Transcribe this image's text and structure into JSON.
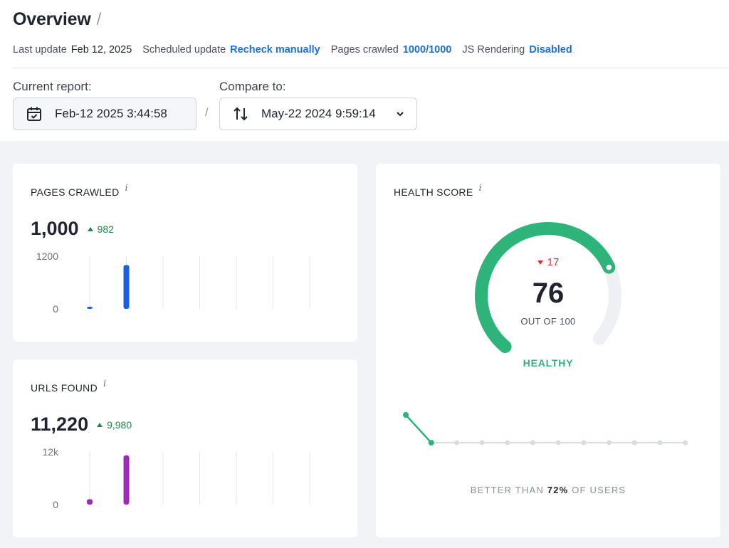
{
  "header": {
    "title": "Overview",
    "title_sep": "/",
    "meta": {
      "last_update_label": "Last update",
      "last_update_value": "Feb 12, 2025",
      "scheduled_label": "Scheduled update",
      "scheduled_link": "Recheck manually",
      "pages_label": "Pages crawled",
      "pages_value": "1000/1000",
      "js_label": "JS Rendering",
      "js_value": "Disabled"
    },
    "current_report": {
      "label": "Current report:",
      "value": "Feb-12 2025 3:44:58",
      "icon": "calendar-check-icon"
    },
    "separator": "/",
    "compare": {
      "label": "Compare to:",
      "value": "May-22 2024 9:59:14",
      "icon": "swap-vertical-icon"
    }
  },
  "pages_crawled": {
    "title": "PAGES CRAWLED",
    "info": "i",
    "value": "1,000",
    "delta": "982",
    "color": "#1a5fe0",
    "chart_data": {
      "type": "bar",
      "ytick_labels": [
        "1200",
        "0"
      ],
      "ylim": [
        0,
        1200
      ],
      "values": [
        18,
        1000
      ],
      "slots": 7
    }
  },
  "urls_found": {
    "title": "URLS FOUND",
    "info": "i",
    "value": "11,220",
    "delta": "9,980",
    "color": "#9b2bb8",
    "chart_data": {
      "type": "bar",
      "ytick_labels": [
        "12k",
        "0"
      ],
      "ylim": [
        0,
        12000
      ],
      "values": [
        1240,
        11220
      ],
      "slots": 7
    }
  },
  "health": {
    "title": "HEALTH SCORE",
    "info": "i",
    "delta": "17",
    "score": "76",
    "score_value": 76,
    "out_of": "OUT OF 100",
    "status": "HEALTHY",
    "gauge_color": "#2eb37a",
    "track_color": "#eef0f4",
    "better_prefix": "BETTER THAN",
    "better_value": "72%",
    "better_suffix": "OF USERS",
    "trend": {
      "points": 12,
      "highlight_start": 0,
      "highlight_end": 1
    }
  }
}
